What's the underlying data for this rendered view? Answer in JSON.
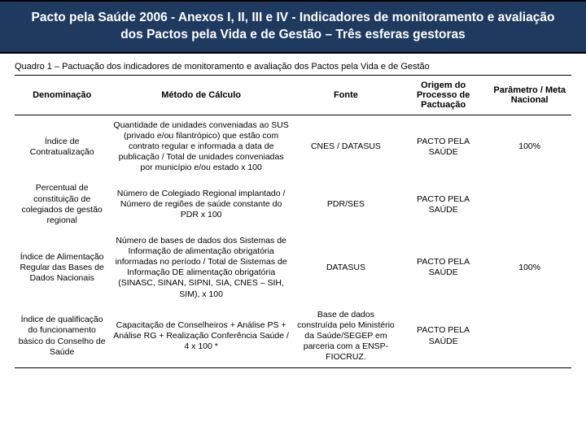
{
  "header": {
    "title": "Pacto pela Saúde 2006  - Anexos I, II, III e IV - Indicadores de monitoramento e avaliação dos Pactos pela Vida e de Gestão – Três esferas gestoras",
    "background_color": "#1f3a5f",
    "text_color": "#ffffff",
    "font_size_pt": 15.5,
    "font_weight": "bold"
  },
  "caption": "Quadro 1 – Pactuação dos indicadores de monitoramento e avaliação dos Pactos pela Vida e de Gestão",
  "table": {
    "type": "table",
    "columns": [
      {
        "label": "Denominação",
        "width_pct": 17,
        "align": "center"
      },
      {
        "label": "Método de Cálculo",
        "width_pct": 33,
        "align": "center"
      },
      {
        "label": "Fonte",
        "width_pct": 19,
        "align": "center"
      },
      {
        "label": "Origem do Processo de Pactuação",
        "width_pct": 16,
        "align": "center"
      },
      {
        "label": "Parâmetro / Meta Nacional",
        "width_pct": 15,
        "align": "center"
      }
    ],
    "rows": [
      {
        "c0": "Índice de Contratualização",
        "c1": "Quantidade de unidades conveniadas ao SUS (privado e/ou filantrópico) que estão com contrato regular e informada a data de publicação / Total de unidades conveniadas por município e/ou estado x 100",
        "c2": "CNES / DATASUS",
        "c3": "PACTO PELA SAÚDE",
        "c4": "100%"
      },
      {
        "c0": "Percentual de constituição de colegiados de gestão regional",
        "c1": "Número de Colegiado Regional implantado / Número de regiões de saúde constante do PDR x 100",
        "c2": "PDR/SES",
        "c3": "PACTO PELA SAÚDE",
        "c4": ""
      },
      {
        "c0": "Índice de Alimentação Regular das Bases de Dados Nacionais",
        "c1": "Número de bases de dados dos Sistemas de Informação de alimentação obrigatória informadas no período / Total de Sistemas de Informação DE alimentação obrigatória (SINASC, SINAN, SIPNI, SIA, CNES – SIH, SIM), x 100",
        "c2": "DATASUS",
        "c3": "PACTO PELA SAÚDE",
        "c4": "100%"
      },
      {
        "c0": "Índice de qualificação do funcionamento básico do Conselho de Saúde",
        "c1": "Capacitação de Conselheiros + Análise PS + Análise RG + Realização Conferência Saúde / 4 x 100 *",
        "c2": "Base de dados construída pelo Ministério da Saúde/SEGEP em parceria com a ENSP-FIOCRUZ.",
        "c3": "PACTO PELA SAÚDE",
        "c4": ""
      }
    ],
    "header_border": "#000000",
    "body_font_size_pt": 10.5,
    "header_font_size_pt": 11
  }
}
